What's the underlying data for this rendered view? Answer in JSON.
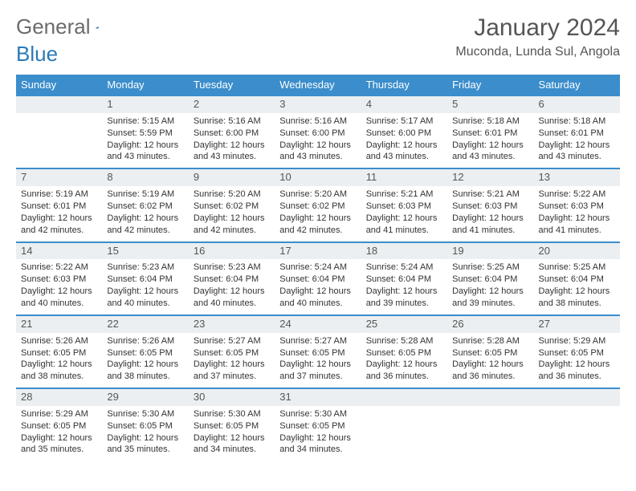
{
  "logo": {
    "word1": "General",
    "word2": "Blue"
  },
  "title": "January 2024",
  "location": "Muconda, Lunda Sul, Angola",
  "colors": {
    "header_bg": "#3b8dcb",
    "header_text": "#ffffff",
    "row_border": "#3b8dcb",
    "daynum_bg": "#ebeff1",
    "logo_gray": "#6b6b6b",
    "logo_blue": "#2a7ab8"
  },
  "typography": {
    "title_fontsize": 30,
    "location_fontsize": 16,
    "header_fontsize": 13,
    "daynum_fontsize": 13,
    "body_fontsize": 11
  },
  "weekdays": [
    "Sunday",
    "Monday",
    "Tuesday",
    "Wednesday",
    "Thursday",
    "Friday",
    "Saturday"
  ],
  "weeks": [
    [
      null,
      {
        "n": "1",
        "sr": "Sunrise: 5:15 AM",
        "ss": "Sunset: 5:59 PM",
        "dl": "Daylight: 12 hours and 43 minutes."
      },
      {
        "n": "2",
        "sr": "Sunrise: 5:16 AM",
        "ss": "Sunset: 6:00 PM",
        "dl": "Daylight: 12 hours and 43 minutes."
      },
      {
        "n": "3",
        "sr": "Sunrise: 5:16 AM",
        "ss": "Sunset: 6:00 PM",
        "dl": "Daylight: 12 hours and 43 minutes."
      },
      {
        "n": "4",
        "sr": "Sunrise: 5:17 AM",
        "ss": "Sunset: 6:00 PM",
        "dl": "Daylight: 12 hours and 43 minutes."
      },
      {
        "n": "5",
        "sr": "Sunrise: 5:18 AM",
        "ss": "Sunset: 6:01 PM",
        "dl": "Daylight: 12 hours and 43 minutes."
      },
      {
        "n": "6",
        "sr": "Sunrise: 5:18 AM",
        "ss": "Sunset: 6:01 PM",
        "dl": "Daylight: 12 hours and 43 minutes."
      }
    ],
    [
      {
        "n": "7",
        "sr": "Sunrise: 5:19 AM",
        "ss": "Sunset: 6:01 PM",
        "dl": "Daylight: 12 hours and 42 minutes."
      },
      {
        "n": "8",
        "sr": "Sunrise: 5:19 AM",
        "ss": "Sunset: 6:02 PM",
        "dl": "Daylight: 12 hours and 42 minutes."
      },
      {
        "n": "9",
        "sr": "Sunrise: 5:20 AM",
        "ss": "Sunset: 6:02 PM",
        "dl": "Daylight: 12 hours and 42 minutes."
      },
      {
        "n": "10",
        "sr": "Sunrise: 5:20 AM",
        "ss": "Sunset: 6:02 PM",
        "dl": "Daylight: 12 hours and 42 minutes."
      },
      {
        "n": "11",
        "sr": "Sunrise: 5:21 AM",
        "ss": "Sunset: 6:03 PM",
        "dl": "Daylight: 12 hours and 41 minutes."
      },
      {
        "n": "12",
        "sr": "Sunrise: 5:21 AM",
        "ss": "Sunset: 6:03 PM",
        "dl": "Daylight: 12 hours and 41 minutes."
      },
      {
        "n": "13",
        "sr": "Sunrise: 5:22 AM",
        "ss": "Sunset: 6:03 PM",
        "dl": "Daylight: 12 hours and 41 minutes."
      }
    ],
    [
      {
        "n": "14",
        "sr": "Sunrise: 5:22 AM",
        "ss": "Sunset: 6:03 PM",
        "dl": "Daylight: 12 hours and 40 minutes."
      },
      {
        "n": "15",
        "sr": "Sunrise: 5:23 AM",
        "ss": "Sunset: 6:04 PM",
        "dl": "Daylight: 12 hours and 40 minutes."
      },
      {
        "n": "16",
        "sr": "Sunrise: 5:23 AM",
        "ss": "Sunset: 6:04 PM",
        "dl": "Daylight: 12 hours and 40 minutes."
      },
      {
        "n": "17",
        "sr": "Sunrise: 5:24 AM",
        "ss": "Sunset: 6:04 PM",
        "dl": "Daylight: 12 hours and 40 minutes."
      },
      {
        "n": "18",
        "sr": "Sunrise: 5:24 AM",
        "ss": "Sunset: 6:04 PM",
        "dl": "Daylight: 12 hours and 39 minutes."
      },
      {
        "n": "19",
        "sr": "Sunrise: 5:25 AM",
        "ss": "Sunset: 6:04 PM",
        "dl": "Daylight: 12 hours and 39 minutes."
      },
      {
        "n": "20",
        "sr": "Sunrise: 5:25 AM",
        "ss": "Sunset: 6:04 PM",
        "dl": "Daylight: 12 hours and 38 minutes."
      }
    ],
    [
      {
        "n": "21",
        "sr": "Sunrise: 5:26 AM",
        "ss": "Sunset: 6:05 PM",
        "dl": "Daylight: 12 hours and 38 minutes."
      },
      {
        "n": "22",
        "sr": "Sunrise: 5:26 AM",
        "ss": "Sunset: 6:05 PM",
        "dl": "Daylight: 12 hours and 38 minutes."
      },
      {
        "n": "23",
        "sr": "Sunrise: 5:27 AM",
        "ss": "Sunset: 6:05 PM",
        "dl": "Daylight: 12 hours and 37 minutes."
      },
      {
        "n": "24",
        "sr": "Sunrise: 5:27 AM",
        "ss": "Sunset: 6:05 PM",
        "dl": "Daylight: 12 hours and 37 minutes."
      },
      {
        "n": "25",
        "sr": "Sunrise: 5:28 AM",
        "ss": "Sunset: 6:05 PM",
        "dl": "Daylight: 12 hours and 36 minutes."
      },
      {
        "n": "26",
        "sr": "Sunrise: 5:28 AM",
        "ss": "Sunset: 6:05 PM",
        "dl": "Daylight: 12 hours and 36 minutes."
      },
      {
        "n": "27",
        "sr": "Sunrise: 5:29 AM",
        "ss": "Sunset: 6:05 PM",
        "dl": "Daylight: 12 hours and 36 minutes."
      }
    ],
    [
      {
        "n": "28",
        "sr": "Sunrise: 5:29 AM",
        "ss": "Sunset: 6:05 PM",
        "dl": "Daylight: 12 hours and 35 minutes."
      },
      {
        "n": "29",
        "sr": "Sunrise: 5:30 AM",
        "ss": "Sunset: 6:05 PM",
        "dl": "Daylight: 12 hours and 35 minutes."
      },
      {
        "n": "30",
        "sr": "Sunrise: 5:30 AM",
        "ss": "Sunset: 6:05 PM",
        "dl": "Daylight: 12 hours and 34 minutes."
      },
      {
        "n": "31",
        "sr": "Sunrise: 5:30 AM",
        "ss": "Sunset: 6:05 PM",
        "dl": "Daylight: 12 hours and 34 minutes."
      },
      null,
      null,
      null
    ]
  ]
}
